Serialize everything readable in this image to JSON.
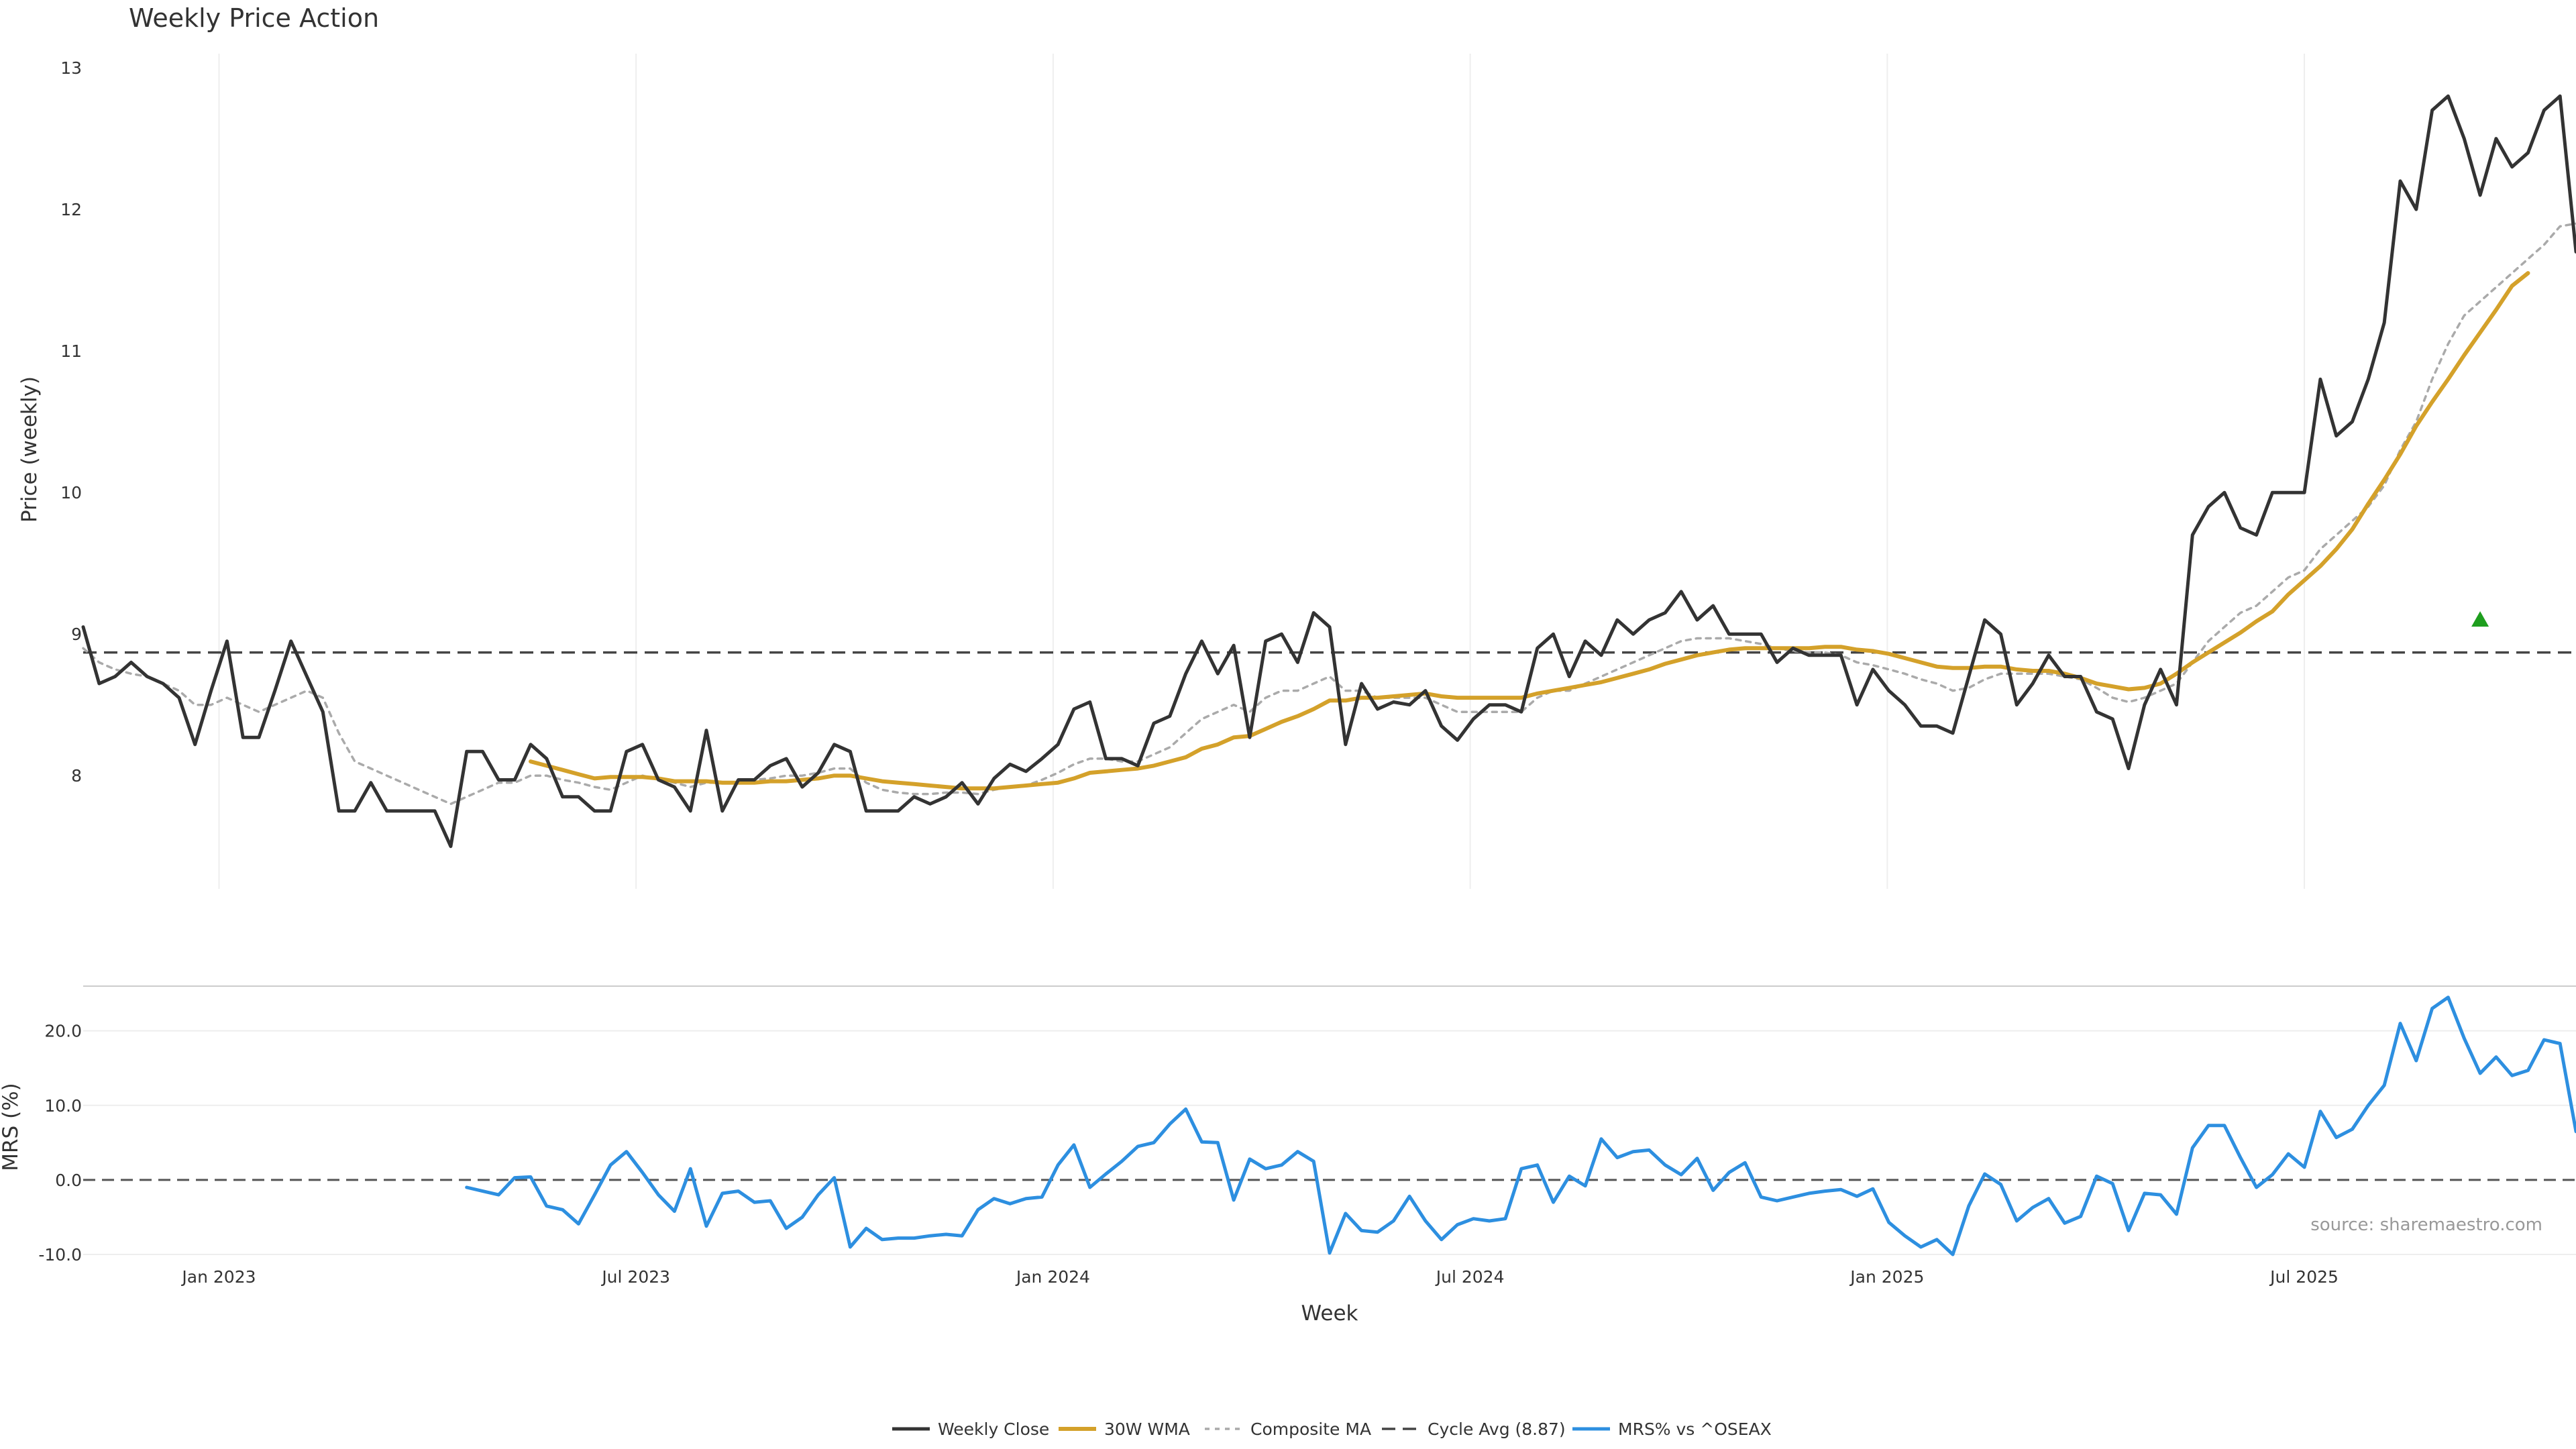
{
  "chart_data": {
    "type": "line",
    "title": "Weekly Price Action",
    "xlabel": "Week",
    "source": "source: sharemaestro.com",
    "x_ticks": [
      "Jan 2023",
      "Jul 2023",
      "Jan 2024",
      "Jul 2024",
      "Jan 2025",
      "Jul 2025"
    ],
    "price_panel": {
      "ylabel": "Price (weekly)",
      "ylim": [
        7.2,
        13.1
      ],
      "y_ticks": [
        "8",
        "9",
        "10",
        "11",
        "12",
        "13"
      ],
      "cycle_avg": 8.87,
      "signal_marker": {
        "week_index": 150,
        "value": 9.1
      },
      "series": [
        {
          "name": "Weekly Close",
          "color": "#333333",
          "start_index": 0,
          "values": [
            9.05,
            8.65,
            8.7,
            8.8,
            8.7,
            8.65,
            8.55,
            8.22,
            8.6,
            8.95,
            8.27,
            8.27,
            8.6,
            8.95,
            8.7,
            8.45,
            7.75,
            7.75,
            7.95,
            7.75,
            7.75,
            7.75,
            7.75,
            7.5,
            8.17,
            8.17,
            7.97,
            7.97,
            8.22,
            8.12,
            7.85,
            7.85,
            7.75,
            7.75,
            8.17,
            8.22,
            7.97,
            7.92,
            7.75,
            8.32,
            7.75,
            7.97,
            7.97,
            8.07,
            8.12,
            7.92,
            8.02,
            8.22,
            8.17,
            7.75,
            7.75,
            7.75,
            7.85,
            7.8,
            7.85,
            7.95,
            7.8,
            7.98,
            8.08,
            8.03,
            8.12,
            8.22,
            8.47,
            8.52,
            8.12,
            8.12,
            8.07,
            8.37,
            8.42,
            8.72,
            8.95,
            8.72,
            8.92,
            8.27,
            8.95,
            9.0,
            8.8,
            9.15,
            9.05,
            8.22,
            8.65,
            8.47,
            8.52,
            8.5,
            8.6,
            8.35,
            8.25,
            8.4,
            8.5,
            8.5,
            8.45,
            8.9,
            9.0,
            8.7,
            8.95,
            8.85,
            9.1,
            9.0,
            9.1,
            9.15,
            9.3,
            9.1,
            9.2,
            9.0,
            9.0,
            9.0,
            8.8,
            8.9,
            8.85,
            8.85,
            8.85,
            8.5,
            8.75,
            8.6,
            8.5,
            8.35,
            8.35,
            8.3,
            8.7,
            9.1,
            9.0,
            8.5,
            8.65,
            8.85,
            8.7,
            8.7,
            8.45,
            8.4,
            8.05,
            8.5,
            8.75,
            8.5,
            9.7,
            9.9,
            10.0,
            9.75,
            9.7,
            10.0,
            10.0,
            10.0,
            10.8,
            10.4,
            10.5,
            10.8,
            11.2,
            12.2,
            12.0,
            12.7,
            12.8,
            12.5,
            12.1,
            12.5,
            12.3,
            12.4,
            12.7,
            12.8,
            11.7
          ]
        },
        {
          "name": "30W WMA",
          "color": "#d4a12a",
          "start_index": 28,
          "values": [
            8.1,
            8.07,
            8.04,
            8.01,
            7.98,
            7.99,
            7.99,
            7.99,
            7.98,
            7.96,
            7.96,
            7.96,
            7.95,
            7.95,
            7.95,
            7.96,
            7.96,
            7.97,
            7.98,
            8.0,
            8.0,
            7.98,
            7.96,
            7.95,
            7.94,
            7.93,
            7.92,
            7.91,
            7.91,
            7.91,
            7.92,
            7.93,
            7.94,
            7.95,
            7.98,
            8.02,
            8.03,
            8.04,
            8.05,
            8.07,
            8.1,
            8.13,
            8.19,
            8.22,
            8.27,
            8.28,
            8.33,
            8.38,
            8.42,
            8.47,
            8.53,
            8.53,
            8.55,
            8.55,
            8.56,
            8.57,
            8.58,
            8.56,
            8.55,
            8.55,
            8.55,
            8.55,
            8.55,
            8.58,
            8.6,
            8.62,
            8.64,
            8.66,
            8.69,
            8.72,
            8.75,
            8.79,
            8.82,
            8.85,
            8.87,
            8.89,
            8.9,
            8.9,
            8.9,
            8.9,
            8.9,
            8.91,
            8.91,
            8.89,
            8.88,
            8.86,
            8.83,
            8.8,
            8.77,
            8.76,
            8.76,
            8.77,
            8.77,
            8.75,
            8.74,
            8.74,
            8.72,
            8.69,
            8.65,
            8.63,
            8.61,
            8.62,
            8.65,
            8.72,
            8.8,
            8.87,
            8.94,
            9.01,
            9.09,
            9.16,
            9.28,
            9.38,
            9.48,
            9.6,
            9.74,
            9.92,
            10.09,
            10.27,
            10.47,
            10.64,
            10.8,
            10.97,
            11.13,
            11.29,
            11.46,
            11.55
          ]
        },
        {
          "name": "Composite MA",
          "color": "#aaaaaa",
          "start_index": 0,
          "values": [
            8.9,
            8.8,
            8.75,
            8.72,
            8.7,
            8.65,
            8.6,
            8.5,
            8.5,
            8.55,
            8.5,
            8.45,
            8.5,
            8.55,
            8.6,
            8.55,
            8.3,
            8.1,
            8.05,
            8.0,
            7.95,
            7.9,
            7.85,
            7.8,
            7.85,
            7.9,
            7.95,
            7.95,
            8.0,
            8.0,
            7.97,
            7.95,
            7.92,
            7.9,
            7.95,
            8.0,
            7.97,
            7.95,
            7.92,
            7.95,
            7.95,
            7.95,
            7.97,
            7.98,
            8.0,
            8.0,
            8.02,
            8.05,
            8.05,
            7.95,
            7.9,
            7.88,
            7.87,
            7.87,
            7.88,
            7.88,
            7.87,
            7.9,
            7.92,
            7.93,
            7.97,
            8.02,
            8.08,
            8.12,
            8.12,
            8.1,
            8.1,
            8.15,
            8.2,
            8.3,
            8.4,
            8.45,
            8.5,
            8.45,
            8.55,
            8.6,
            8.6,
            8.65,
            8.7,
            8.6,
            8.6,
            8.55,
            8.55,
            8.55,
            8.55,
            8.5,
            8.45,
            8.45,
            8.45,
            8.45,
            8.45,
            8.55,
            8.6,
            8.6,
            8.65,
            8.7,
            8.75,
            8.8,
            8.85,
            8.9,
            8.95,
            8.97,
            8.97,
            8.97,
            8.95,
            8.93,
            8.9,
            8.88,
            8.87,
            8.87,
            8.85,
            8.8,
            8.78,
            8.75,
            8.72,
            8.68,
            8.65,
            8.6,
            8.62,
            8.68,
            8.72,
            8.72,
            8.72,
            8.72,
            8.7,
            8.68,
            8.62,
            8.55,
            8.52,
            8.55,
            8.6,
            8.65,
            8.8,
            8.95,
            9.05,
            9.15,
            9.2,
            9.3,
            9.4,
            9.45,
            9.6,
            9.7,
            9.8,
            9.9,
            10.05,
            10.3,
            10.5,
            10.8,
            11.05,
            11.25,
            11.35,
            11.45,
            11.55,
            11.65,
            11.75,
            11.88,
            11.9
          ]
        }
      ]
    },
    "mrs_panel": {
      "ylabel": "MRS (%)",
      "ylim": [
        -10.0,
        26.0
      ],
      "y_ticks": [
        "-10.0",
        "0.0",
        "10.0",
        "20.0"
      ],
      "series": [
        {
          "name": "MRS% vs ^OSEAX",
          "color": "#2d8fe0",
          "start_index": 24,
          "values": [
            -1.0,
            -1.5,
            -2.0,
            0.3,
            0.4,
            -3.5,
            -4.0,
            -5.9,
            -2.0,
            2.0,
            3.8,
            1.0,
            -2.0,
            -4.2,
            1.5,
            -6.2,
            -1.8,
            -1.5,
            -3.0,
            -2.8,
            -6.5,
            -5.0,
            -2.0,
            0.3,
            -9.0,
            -6.5,
            -8.0,
            -7.8,
            -7.8,
            -7.5,
            -7.3,
            -7.5,
            -4.0,
            -2.5,
            -3.2,
            -2.5,
            -2.3,
            2.0,
            4.7,
            -1.0,
            0.8,
            2.5,
            4.5,
            5.0,
            7.5,
            9.5,
            5.1,
            5.0,
            -2.7,
            2.8,
            1.5,
            2.0,
            3.8,
            2.5,
            -9.8,
            -4.5,
            -6.8,
            -7.0,
            -5.5,
            -2.2,
            -5.5,
            -8.0,
            -6.0,
            -5.2,
            -5.5,
            -5.2,
            1.5,
            2.0,
            -3.0,
            0.5,
            -0.8,
            5.5,
            3.0,
            3.8,
            4.0,
            2.0,
            0.7,
            2.9,
            -1.4,
            1.0,
            2.3,
            -2.3,
            -2.8,
            -2.3,
            -1.8,
            -1.5,
            -1.3,
            -2.2,
            -1.2,
            -5.7,
            -7.5,
            -9.0,
            -8.0,
            -10.0,
            -3.5,
            0.8,
            -0.6,
            -5.5,
            -3.7,
            -2.5,
            -5.8,
            -4.9,
            0.5,
            -0.5,
            -6.8,
            -1.8,
            -2.0,
            -4.6,
            4.3,
            7.3,
            7.3,
            3.0,
            -1.0,
            0.7,
            3.5,
            1.7,
            9.2,
            5.7,
            6.8,
            10.0,
            12.7,
            21.0,
            16.0,
            23.0,
            24.5,
            19.0,
            14.3,
            16.5,
            14.0,
            14.7,
            18.8,
            18.3,
            6.5
          ]
        }
      ]
    },
    "legend": [
      "Weekly Close",
      "30W WMA",
      "Composite MA",
      "Cycle Avg (8.87)",
      "MRS% vs ^OSEAX"
    ]
  }
}
